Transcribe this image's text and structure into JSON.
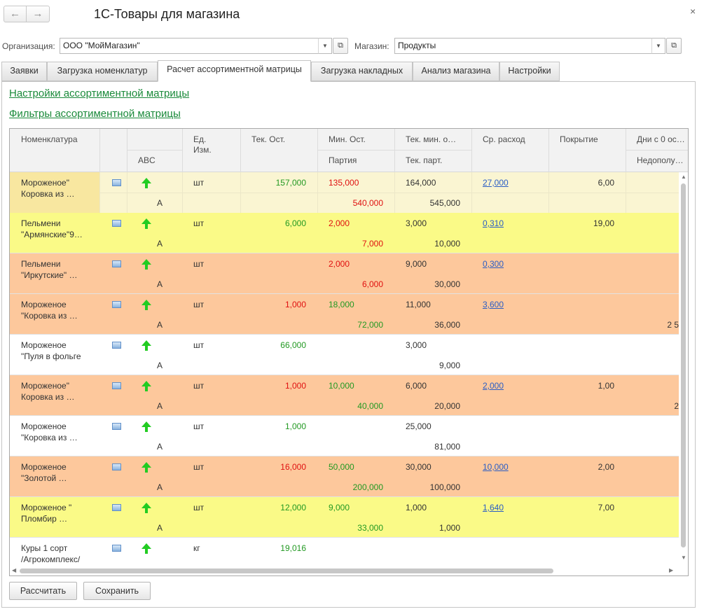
{
  "window": {
    "title": "1С-Товары для магазина",
    "back_glyph": "←",
    "forward_glyph": "→",
    "close_glyph": "×"
  },
  "filters": {
    "organization_label": "Организация:",
    "organization_value": "ООО \"МойМагазин\"",
    "store_label": "Магазин:",
    "store_value": "Продукты"
  },
  "tabs": [
    {
      "label": "Заявки"
    },
    {
      "label": "Загрузка номенклатур"
    },
    {
      "label": "Расчет ассортиментной матрицы",
      "active": true
    },
    {
      "label": "Загрузка накладных"
    },
    {
      "label": "Анализ магазина"
    },
    {
      "label": "Настройки"
    }
  ],
  "links": {
    "settings": "Настройки ассортиментной матрицы",
    "filters": "Фильтры ассортиментной матрицы"
  },
  "table": {
    "headers": {
      "item": "Номенклатура",
      "abc": "ABC",
      "unit": "Ед.\nИзм.",
      "stock": "Тек. Ост.",
      "min_stock": "Мин. Ост.",
      "batch": "Партия",
      "cur_min": "Тек. мин. о…",
      "cur_batch": "Тек. парт.",
      "avg_use": "Ср. расход",
      "coverage": "Покрытие",
      "zero_days": "Дни с 0 ос…",
      "shortfall": "Недополу…"
    },
    "rows": [
      {
        "name1": "Мороженое\"",
        "name2": "Коровка из …",
        "abc": "A",
        "unit": "шт",
        "stock": "157,000",
        "min": "135,000",
        "batch": "540,000",
        "curmin": "164,000",
        "curbatch": "545,000",
        "avg": "27,000",
        "cov": "6,00",
        "extra": ""
      },
      {
        "name1": "Пельмени",
        "name2": "\"Армянские\"9…",
        "abc": "A",
        "unit": "шт",
        "stock": "6,000",
        "min": "2,000",
        "batch": "7,000",
        "curmin": "3,000",
        "curbatch": "10,000",
        "avg": "0,310",
        "cov": "19,00",
        "extra": ""
      },
      {
        "name1": "Пельмени",
        "name2": "\"Иркутские\" …",
        "abc": "A",
        "unit": "шт",
        "stock": "",
        "min": "2,000",
        "batch": "6,000",
        "curmin": "9,000",
        "curbatch": "30,000",
        "avg": "0,300",
        "cov": "",
        "extra": ""
      },
      {
        "name1": "Мороженое",
        "name2": "\"Коровка из …",
        "abc": "A",
        "unit": "шт",
        "stock": "1,000",
        "min": "18,000",
        "batch": "72,000",
        "curmin": "11,000",
        "curbatch": "36,000",
        "avg": "3,600",
        "cov": "",
        "extra": "2 5"
      },
      {
        "name1": "Мороженое",
        "name2": "\"Пуля в фольге",
        "abc": "A",
        "unit": "шт",
        "stock": "66,000",
        "min": "",
        "batch": "",
        "curmin": "3,000",
        "curbatch": "9,000",
        "avg": "",
        "cov": "",
        "extra": ""
      },
      {
        "name1": "Мороженое\"",
        "name2": "Коровка из …",
        "abc": "A",
        "unit": "шт",
        "stock": "1,000",
        "min": "10,000",
        "batch": "40,000",
        "curmin": "6,000",
        "curbatch": "20,000",
        "avg": "2,000",
        "cov": "1,00",
        "extra": "2"
      },
      {
        "name1": "Мороженое",
        "name2": "\"Коровка из …",
        "abc": "A",
        "unit": "шт",
        "stock": "1,000",
        "min": "",
        "batch": "",
        "curmin": "25,000",
        "curbatch": "81,000",
        "avg": "",
        "cov": "",
        "extra": ""
      },
      {
        "name1": "Мороженое",
        "name2": "\"Золотой …",
        "abc": "A",
        "unit": "шт",
        "stock": "16,000",
        "min": "50,000",
        "batch": "200,000",
        "curmin": "30,000",
        "curbatch": "100,000",
        "avg": "10,000",
        "cov": "2,00",
        "extra": ""
      },
      {
        "name1": "Мороженое \"",
        "name2": "Пломбир …",
        "abc": "A",
        "unit": "шт",
        "stock": "12,000",
        "min": "9,000",
        "batch": "33,000",
        "curmin": "1,000",
        "curbatch": "1,000",
        "avg": "1,640",
        "cov": "7,00",
        "extra": ""
      },
      {
        "name1": "Куры 1 сорт",
        "name2": "/Агрокомплекс/",
        "abc": "",
        "unit": "кг",
        "stock": "19,016",
        "min": "",
        "batch": "",
        "curmin": "",
        "curbatch": "",
        "avg": "",
        "cov": "",
        "extra": ""
      }
    ]
  },
  "buttons": {
    "calculate": "Рассчитать",
    "save": "Сохранить"
  },
  "colors": {
    "yellow": "#fafa87",
    "orange": "#fdc89c",
    "selected": "#faf5d2",
    "selected_name": "#f8e7a0",
    "white": "#ffffff",
    "green": "#229922",
    "red": "#e01010",
    "link": "#2a5dc5",
    "accent_link": "#1a8a3a"
  }
}
